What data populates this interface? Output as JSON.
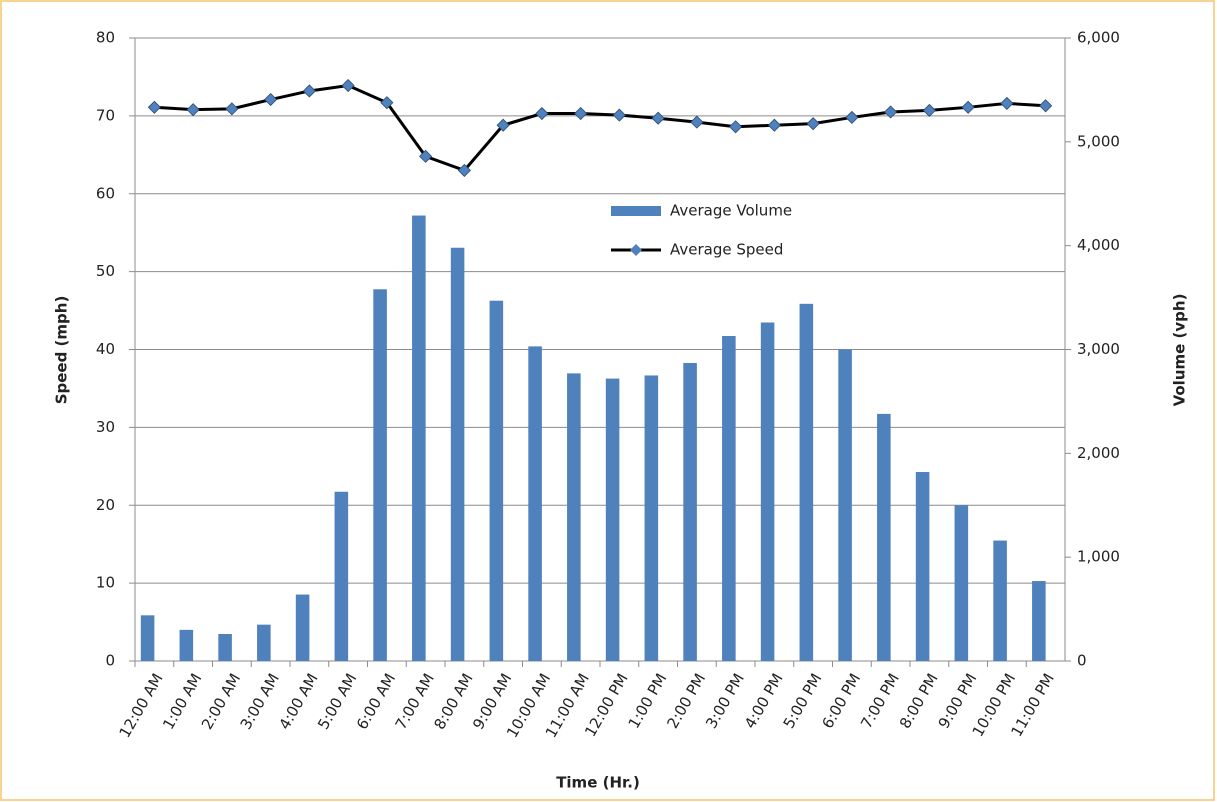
{
  "chart_data": {
    "type": "bar_line",
    "x_label": "Time (Hr.)",
    "y_label": "Speed (mph)",
    "y2_label": "Volume (vph)",
    "categories": [
      "12:00 AM",
      "1:00 AM",
      "2:00 AM",
      "3:00 AM",
      "4:00 AM",
      "5:00 AM",
      "6:00 AM",
      "7:00 AM",
      "8:00 AM",
      "9:00 AM",
      "10:00 AM",
      "11:00 AM",
      "12:00 PM",
      "1:00 PM",
      "2:00 PM",
      "3:00 PM",
      "4:00 PM",
      "5:00 PM",
      "6:00 PM",
      "7:00 PM",
      "8:00 PM",
      "9:00 PM",
      "10:00 PM",
      "11:00 PM"
    ],
    "series": [
      {
        "name": "Average Volume",
        "color": "#4f81bd",
        "axis": "y2",
        "kind": "bar",
        "values": [
          440,
          300,
          260,
          350,
          640,
          1630,
          3580,
          4290,
          3980,
          3470,
          3030,
          2770,
          2720,
          2750,
          2870,
          3130,
          3260,
          3440,
          3000,
          2380,
          1820,
          1500,
          1160,
          770
        ]
      },
      {
        "name": "Average Speed",
        "color": "#000000",
        "marker_color": "#4f81bd",
        "kind": "line",
        "values": [
          71.1,
          70.8,
          70.9,
          72.1,
          73.2,
          73.9,
          71.7,
          64.8,
          63.0,
          68.8,
          70.3,
          70.3,
          70.1,
          69.7,
          69.2,
          68.6,
          68.8,
          69.0,
          69.8,
          70.5,
          70.7,
          71.1,
          71.6,
          71.3
        ]
      }
    ],
    "ylim": [
      0,
      80
    ],
    "yticks": [
      0,
      10,
      20,
      30,
      40,
      50,
      60,
      70,
      80
    ],
    "y2lim": [
      0,
      6000
    ],
    "y2ticks": [
      0,
      {
        "value": 1000,
        "label": "1,000"
      },
      {
        "value": 2000,
        "label": "2,000"
      },
      {
        "value": 3000,
        "label": "3,000"
      },
      {
        "value": 4000,
        "label": "4,000"
      },
      {
        "value": 5000,
        "label": "5,000"
      },
      {
        "value": 6000,
        "label": "6,000"
      }
    ],
    "grid": true
  }
}
